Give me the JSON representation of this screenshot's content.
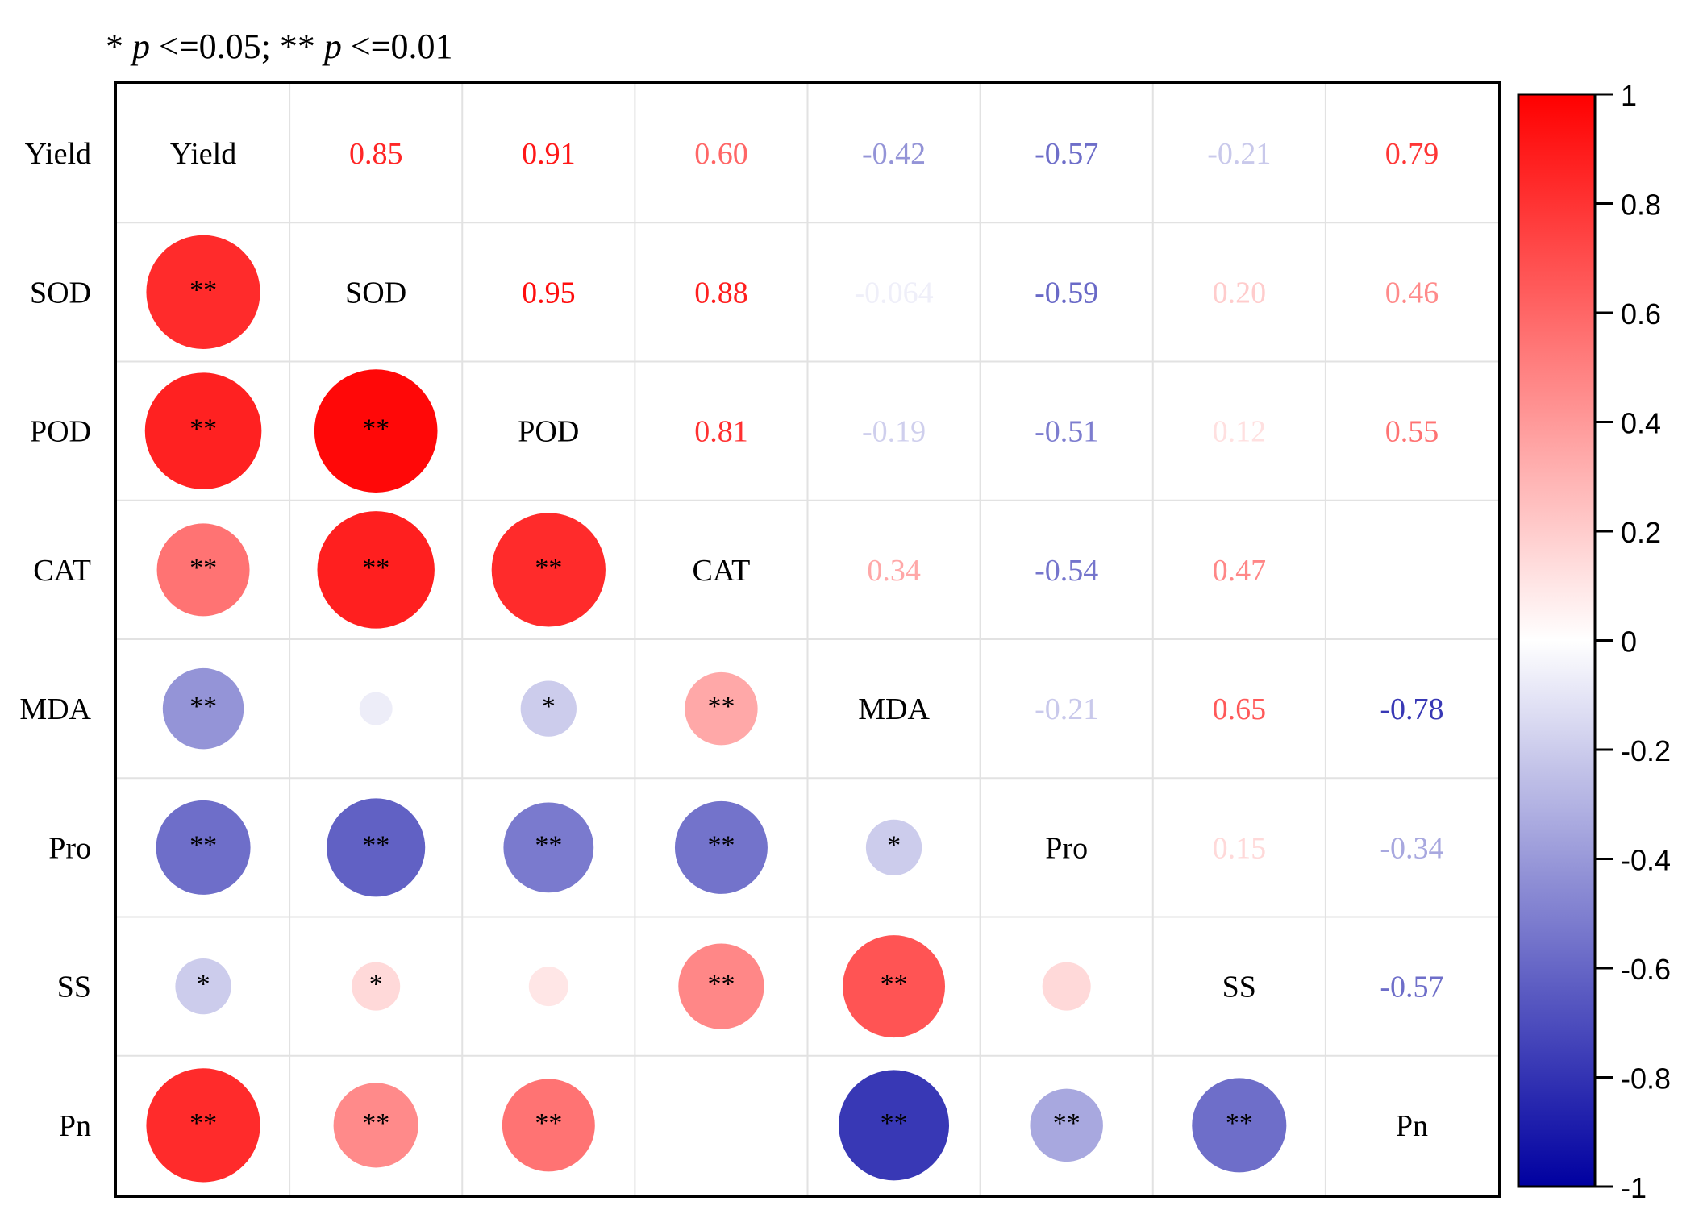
{
  "chart_data": {
    "type": "heatmap",
    "subtype": "correlation-matrix",
    "note_parts": {
      "star1": "* ",
      "p1": "p",
      "cond1": "<=0.05; ",
      "star2": "** ",
      "p2": "p",
      "cond2": "<=0.01"
    },
    "variables": [
      "Yield",
      "SOD",
      "POD",
      "CAT",
      "MDA",
      "Pro",
      "SS",
      "Pn"
    ],
    "upper_labels": [
      [
        null,
        "0.85",
        "0.91",
        "0.60",
        "-0.42",
        "-0.57",
        "-0.21",
        "0.79"
      ],
      [
        null,
        null,
        "0.95",
        "0.88",
        "-0.064",
        "-0.59",
        "0.20",
        "0.46"
      ],
      [
        null,
        null,
        null,
        "0.81",
        "-0.19",
        "-0.51",
        "0.12",
        "0.55"
      ],
      [
        null,
        null,
        null,
        null,
        "0.34",
        "-0.54",
        "0.47",
        ""
      ],
      [
        null,
        null,
        null,
        null,
        null,
        "-0.21",
        "0.65",
        "-0.78"
      ],
      [
        null,
        null,
        null,
        null,
        null,
        null,
        "0.15",
        "-0.34"
      ],
      [
        null,
        null,
        null,
        null,
        null,
        null,
        null,
        "-0.57"
      ],
      [
        null,
        null,
        null,
        null,
        null,
        null,
        null,
        null
      ]
    ],
    "upper_values": [
      [
        null,
        0.85,
        0.91,
        0.6,
        -0.42,
        -0.57,
        -0.21,
        0.79
      ],
      [
        null,
        null,
        0.95,
        0.88,
        -0.064,
        -0.59,
        0.2,
        0.46
      ],
      [
        null,
        null,
        null,
        0.81,
        -0.19,
        -0.51,
        0.12,
        0.55
      ],
      [
        null,
        null,
        null,
        null,
        0.34,
        -0.54,
        0.47,
        0.0
      ],
      [
        null,
        null,
        null,
        null,
        null,
        -0.21,
        0.65,
        -0.78
      ],
      [
        null,
        null,
        null,
        null,
        null,
        null,
        0.15,
        -0.34
      ],
      [
        null,
        null,
        null,
        null,
        null,
        null,
        null,
        -0.57
      ],
      [
        null,
        null,
        null,
        null,
        null,
        null,
        null,
        null
      ]
    ],
    "lower": [
      {
        "row": 1,
        "col": 0,
        "r": 0.83,
        "sig": "**"
      },
      {
        "row": 2,
        "col": 0,
        "r": 0.87,
        "sig": "**"
      },
      {
        "row": 2,
        "col": 1,
        "r": 0.97,
        "sig": "**"
      },
      {
        "row": 3,
        "col": 0,
        "r": 0.55,
        "sig": "**"
      },
      {
        "row": 3,
        "col": 1,
        "r": 0.88,
        "sig": "**"
      },
      {
        "row": 3,
        "col": 2,
        "r": 0.83,
        "sig": "**"
      },
      {
        "row": 4,
        "col": 0,
        "r": -0.42,
        "sig": "**"
      },
      {
        "row": 4,
        "col": 1,
        "r": -0.07,
        "sig": ""
      },
      {
        "row": 4,
        "col": 2,
        "r": -0.2,
        "sig": "*"
      },
      {
        "row": 4,
        "col": 3,
        "r": 0.34,
        "sig": "**"
      },
      {
        "row": 5,
        "col": 0,
        "r": -0.57,
        "sig": "**"
      },
      {
        "row": 5,
        "col": 1,
        "r": -0.62,
        "sig": "**"
      },
      {
        "row": 5,
        "col": 2,
        "r": -0.52,
        "sig": "**"
      },
      {
        "row": 5,
        "col": 3,
        "r": -0.55,
        "sig": "**"
      },
      {
        "row": 5,
        "col": 4,
        "r": -0.2,
        "sig": "*"
      },
      {
        "row": 6,
        "col": 0,
        "r": -0.2,
        "sig": "*"
      },
      {
        "row": 6,
        "col": 1,
        "r": 0.15,
        "sig": "*"
      },
      {
        "row": 6,
        "col": 2,
        "r": 0.1,
        "sig": ""
      },
      {
        "row": 6,
        "col": 3,
        "r": 0.47,
        "sig": "**"
      },
      {
        "row": 6,
        "col": 4,
        "r": 0.67,
        "sig": "**"
      },
      {
        "row": 6,
        "col": 5,
        "r": 0.15,
        "sig": ""
      },
      {
        "row": 7,
        "col": 0,
        "r": 0.83,
        "sig": "**"
      },
      {
        "row": 7,
        "col": 1,
        "r": 0.46,
        "sig": "**"
      },
      {
        "row": 7,
        "col": 2,
        "r": 0.55,
        "sig": "**"
      },
      {
        "row": 7,
        "col": 4,
        "r": -0.78,
        "sig": "**"
      },
      {
        "row": 7,
        "col": 5,
        "r": -0.34,
        "sig": "**"
      },
      {
        "row": 7,
        "col": 6,
        "r": -0.57,
        "sig": "**"
      }
    ],
    "colorbar": {
      "ticks": [
        "1",
        "0.8",
        "0.6",
        "0.4",
        "0.2",
        "0",
        "-0.2",
        "-0.4",
        "-0.6",
        "-0.8",
        "-1"
      ],
      "range": [
        -1,
        1
      ],
      "low_color": "#0000a0",
      "mid_color": "#ffffff",
      "high_color": "#ff0000"
    }
  }
}
